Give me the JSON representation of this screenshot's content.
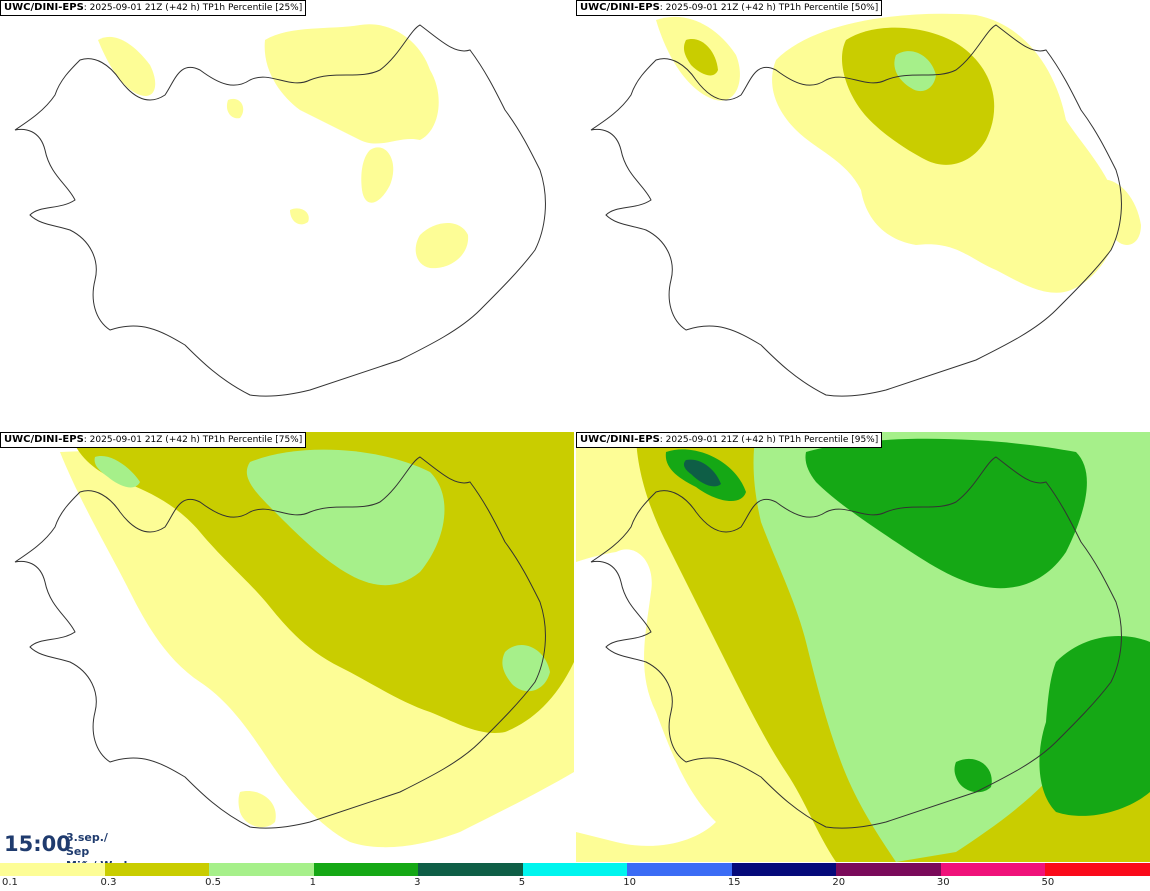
{
  "panels": [
    {
      "model": "UWC/DINI-EPS",
      "info": ": 2025-09-01 21Z (+42 h) TP1h Percentile [25%]"
    },
    {
      "model": "UWC/DINI-EPS",
      "info": ": 2025-09-01 21Z (+42 h) TP1h Percentile [50%]"
    },
    {
      "model": "UWC/DINI-EPS",
      "info": ": 2025-09-01 21Z (+42 h) TP1h Percentile [75%]"
    },
    {
      "model": "UWC/DINI-EPS",
      "info": ": 2025-09-01 21Z (+42 h) TP1h Percentile [95%]"
    }
  ],
  "time": "15:00",
  "date_line1": "3.sep./ Sep",
  "date_line2": "Mið./ Wed",
  "legend": {
    "ticks": [
      "0.1",
      "0.3",
      "0.5",
      "1",
      "3",
      "5",
      "10",
      "15",
      "20",
      "30",
      "50"
    ],
    "colors": [
      "#fdfd96",
      "#c9cd00",
      "#a6f08a",
      "#15a815",
      "#0e5e46",
      "#00f5ee",
      "#3b6cf5",
      "#050a7a",
      "#7a0a5a",
      "#f0127a",
      "#fa0a1a"
    ]
  }
}
